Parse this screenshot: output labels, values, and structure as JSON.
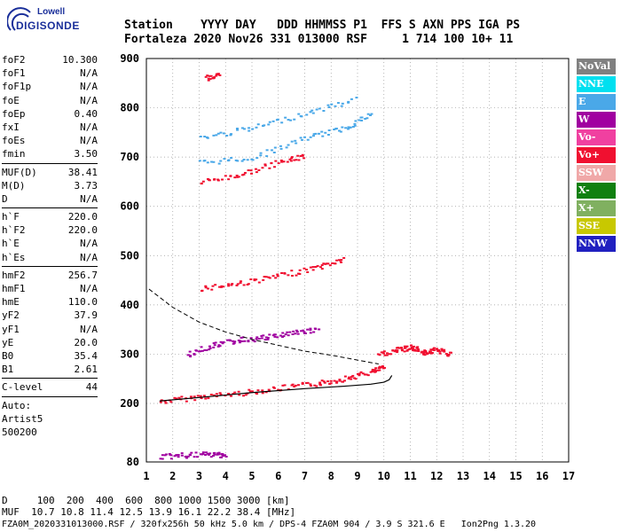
{
  "logo": {
    "top": "Lowell",
    "bottom": "DIGISONDE"
  },
  "header": {
    "line1": "Station    YYYY DAY   DDD HHMMSS P1  FFS S AXN PPS IGA PS",
    "line2": "Fortaleza 2020 Nov26 331 013000 RSF     1 714 100 10+ 11"
  },
  "params": [
    {
      "label": "foF2",
      "value": "10.300"
    },
    {
      "label": "foF1",
      "value": "N/A"
    },
    {
      "label": "foF1p",
      "value": "N/A"
    },
    {
      "label": "foE",
      "value": "N/A"
    },
    {
      "label": "foEp",
      "value": "0.40"
    },
    {
      "label": "fxI",
      "value": "N/A"
    },
    {
      "label": "foEs",
      "value": "N/A"
    },
    {
      "label": "fmin",
      "value": "3.50"
    }
  ],
  "params2": [
    {
      "label": "MUF(D)",
      "value": "38.41"
    },
    {
      "label": "M(D)",
      "value": "3.73"
    },
    {
      "label": "D",
      "value": "N/A"
    }
  ],
  "params3": [
    {
      "label": "h`F",
      "value": "220.0"
    },
    {
      "label": "h`F2",
      "value": "220.0"
    },
    {
      "label": "h`E",
      "value": "N/A"
    },
    {
      "label": "h`Es",
      "value": "N/A"
    }
  ],
  "params4": [
    {
      "label": "hmF2",
      "value": "256.7"
    },
    {
      "label": "hmF1",
      "value": "N/A"
    },
    {
      "label": "hmE",
      "value": "110.0"
    },
    {
      "label": "yF2",
      "value": "37.9"
    },
    {
      "label": "yF1",
      "value": "N/A"
    },
    {
      "label": "yE",
      "value": "20.0"
    },
    {
      "label": "B0",
      "value": "35.4"
    },
    {
      "label": "B1",
      "value": "2.61"
    }
  ],
  "params5": [
    {
      "label": "C-level",
      "value": "44"
    }
  ],
  "auto": {
    "l1": "Auto:",
    "l2": "Artist5",
    "l3": "500200"
  },
  "legend": [
    {
      "label": "NoVal",
      "color": "#808080"
    },
    {
      "label": "NNE",
      "color": "#00e0f0"
    },
    {
      "label": "E",
      "color": "#4aa8e8"
    },
    {
      "label": "W",
      "color": "#a000a0"
    },
    {
      "label": "Vo-",
      "color": "#f040a0"
    },
    {
      "label": "Vo+",
      "color": "#f01030"
    },
    {
      "label": "SSW",
      "color": "#f0a8a8"
    },
    {
      "label": "X-",
      "color": "#108010"
    },
    {
      "label": "X+",
      "color": "#80b060"
    },
    {
      "label": "SSE",
      "color": "#c8c800"
    },
    {
      "label": "NNW",
      "color": "#2020c0"
    }
  ],
  "bottom": {
    "d_line": "D     100  200  400  600  800 1000 1500 3000 [km]",
    "muf_line": "MUF  10.7 10.8 11.4 12.5 13.9 16.1 22.2 38.4 [MHz]",
    "file_line": "FZA0M_2020331013000.RSF / 320fx256h 50 kHz 5.0 km / DPS-4 FZA0M 904 / 3.9 S 321.6 E   Ion2Png 1.3.20"
  },
  "chart_data": {
    "type": "scatter",
    "xlim": [
      1,
      17
    ],
    "ylim": [
      80,
      900
    ],
    "xticks": [
      1,
      2,
      3,
      4,
      5,
      6,
      7,
      8,
      9,
      10,
      11,
      12,
      13,
      14,
      15,
      16,
      17
    ],
    "yticks": [
      80,
      200,
      300,
      400,
      500,
      600,
      700,
      800,
      900
    ],
    "grid": true,
    "profile": {
      "x": [
        1.5,
        3.0,
        5.0,
        7.0,
        8.5,
        9.5,
        10.0,
        10.2,
        10.3
      ],
      "y": [
        205,
        212,
        222,
        230,
        235,
        239,
        243,
        248,
        256.7
      ]
    },
    "dashed_profile": {
      "x": [
        1.1,
        2.0,
        3.0,
        4.0,
        5.0,
        6.0,
        7.0,
        8.0,
        9.0,
        9.8
      ],
      "y": [
        432,
        395,
        365,
        345,
        330,
        318,
        306,
        298,
        288,
        280
      ]
    },
    "traces": [
      {
        "series": "Vo+",
        "x": [
          1.5,
          3.0,
          4.5,
          6.0,
          7.5,
          8.5,
          9.5,
          10.0
        ],
        "y": [
          205,
          215,
          222,
          232,
          242,
          252,
          265,
          275
        ]
      },
      {
        "series": "Vo+",
        "x": [
          3.0,
          4.5,
          6.0,
          7.5,
          8.5
        ],
        "y": [
          435,
          445,
          460,
          478,
          495
        ]
      },
      {
        "series": "Vo+",
        "x": [
          3.0,
          4.5,
          6.0,
          7.0
        ],
        "y": [
          650,
          665,
          690,
          705
        ]
      },
      {
        "series": "Vo+",
        "x": [
          3.2,
          3.8
        ],
        "y": [
          862,
          868
        ]
      },
      {
        "series": "E",
        "x": [
          3.0,
          5.0,
          7.0,
          8.5,
          9.5
        ],
        "y": [
          690,
          700,
          740,
          760,
          790
        ]
      },
      {
        "series": "E",
        "x": [
          3.0,
          5.0,
          7.0,
          9.0
        ],
        "y": [
          740,
          760,
          790,
          820
        ]
      },
      {
        "series": "W",
        "x": [
          2.5,
          3.5,
          4.5,
          5.5,
          6.5,
          7.5
        ],
        "y": [
          300,
          320,
          330,
          335,
          345,
          350
        ]
      },
      {
        "series": "Vo+",
        "x": [
          9.8,
          10.5,
          11.0,
          11.5,
          12.0,
          12.5
        ],
        "y": [
          300,
          310,
          315,
          305,
          310,
          300
        ]
      },
      {
        "series": "W",
        "x": [
          1.5,
          2.5,
          3.5,
          4.0
        ],
        "y": [
          92,
          95,
          97,
          96
        ]
      }
    ]
  }
}
